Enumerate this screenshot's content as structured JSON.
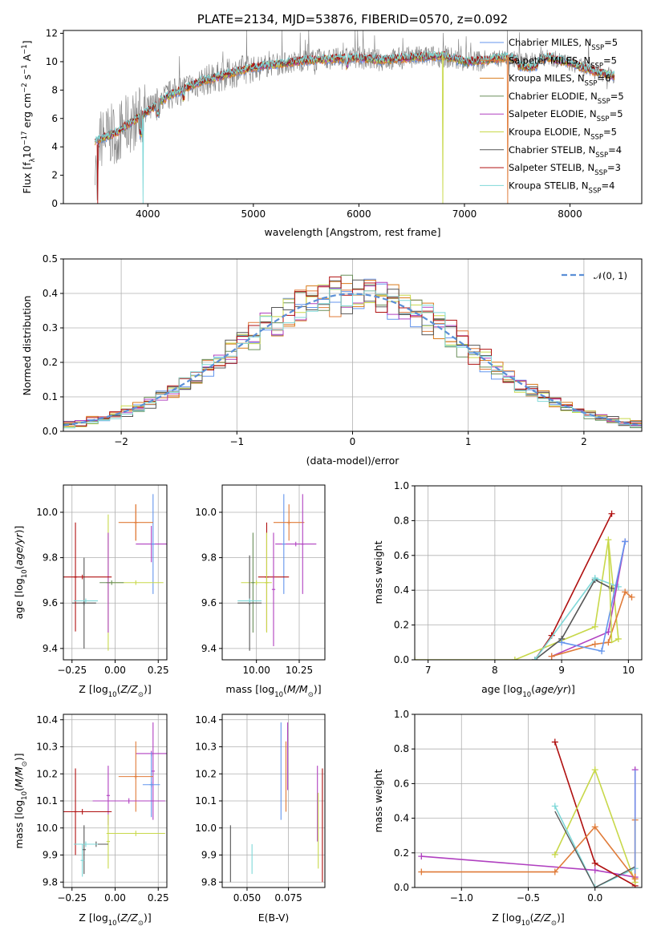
{
  "colors": {
    "chabrier_miles": "#6495ed",
    "salpeter_miles": "#e07b39",
    "kroupa_miles": "#d97a1a",
    "chabrier_elodie": "#6a8f5a",
    "salpeter_elodie": "#b040c0",
    "kroupa_elodie": "#c8d84a",
    "chabrier_stelib": "#555555",
    "salpeter_stelib": "#b01010",
    "kroupa_stelib": "#7fd8d8",
    "data": "#808080",
    "gauss": "#5b8fd6",
    "grid": "#b0b0b0"
  },
  "spectrum": {
    "title": "PLATE=2134, MJD=53876, FIBERID=0570, z=0.092",
    "xlabel": "wavelength [Angstrom, rest frame]",
    "ylabel": "Flux [f",
    "ylabel_parts": [
      "Flux [f",
      "λ",
      "10",
      "−17",
      " erg cm",
      "−2",
      " s",
      "−1",
      " A",
      "−1",
      "]"
    ],
    "xticks": [
      "4000",
      "5000",
      "6000",
      "7000",
      "8000"
    ],
    "yticks": [
      "0",
      "2",
      "4",
      "6",
      "8",
      "10",
      "12"
    ],
    "legend": [
      {
        "text": "Chabrier MILES, N",
        "sub": "SSP",
        "tail": "=5"
      },
      {
        "text": "Salpeter MILES, N",
        "sub": "SSP",
        "tail": "=5"
      },
      {
        "text": "Kroupa MILES, N",
        "sub": "SSP",
        "tail": "=6"
      },
      {
        "text": "Chabrier ELODIE, N",
        "sub": "SSP",
        "tail": "=5"
      },
      {
        "text": "Salpeter ELODIE, N",
        "sub": "SSP",
        "tail": "=5"
      },
      {
        "text": "Kroupa ELODIE, N",
        "sub": "SSP",
        "tail": "=5"
      },
      {
        "text": "Chabrier STELIB, N",
        "sub": "SSP",
        "tail": "=4"
      },
      {
        "text": "Salpeter STELIB, N",
        "sub": "SSP",
        "tail": "=3"
      },
      {
        "text": "Kroupa STELIB, N",
        "sub": "SSP",
        "tail": "=4"
      }
    ]
  },
  "hist": {
    "xlabel": "(data-model)/error",
    "ylabel": "Normed distribution",
    "xticks": [
      "−2",
      "−1",
      "0",
      "1",
      "2"
    ],
    "yticks": [
      "0.0",
      "0.1",
      "0.2",
      "0.3",
      "0.4",
      "0.5"
    ],
    "legend_text": "𝒩(0, 1)"
  },
  "panels": {
    "age_label": "age  [log",
    "z_label": "Z [log",
    "mass_label": "mass [log",
    "ebv_label": "E(B-V)",
    "massweight_label": "mass weight",
    "p_az": {
      "xticks": [
        "−0.25",
        "0.00",
        "0.25"
      ],
      "yticks": [
        "9.4",
        "9.6",
        "9.8",
        "10.0"
      ]
    },
    "p_am": {
      "xticks": [
        "10.00",
        "10.25"
      ],
      "yticks": [
        "9.4",
        "9.6",
        "9.8",
        "10.0"
      ]
    },
    "p_wa": {
      "xticks": [
        "7",
        "8",
        "9",
        "10"
      ],
      "yticks": [
        "0.0",
        "0.2",
        "0.4",
        "0.6",
        "0.8",
        "1.0"
      ]
    },
    "p_mz": {
      "xticks": [
        "−0.25",
        "0.00",
        "0.25"
      ],
      "yticks": [
        "9.8",
        "9.9",
        "10.0",
        "10.1",
        "10.2",
        "10.3",
        "10.4"
      ]
    },
    "p_me": {
      "xticks": [
        "0.050",
        "0.075"
      ],
      "yticks": [
        "9.8",
        "9.9",
        "10.0",
        "10.1",
        "10.2",
        "10.3",
        "10.4"
      ]
    },
    "p_wz": {
      "xticks": [
        "−1.0",
        "−0.5",
        "0.0"
      ],
      "yticks": [
        "0.0",
        "0.2",
        "0.4",
        "0.6",
        "0.8",
        "1.0"
      ]
    }
  },
  "chart_data": [
    {
      "type": "line",
      "title": "PLATE=2134, MJD=53876, FIBERID=0570, z=0.092",
      "xlabel": "wavelength [Angstrom, rest frame]",
      "ylabel": "Flux [fλ10−17 erg cm−2 s−1 A−1]",
      "xlim": [
        3200,
        8680
      ],
      "ylim": [
        0,
        12.2
      ],
      "series": [
        {
          "name": "data",
          "x": [
            3500,
            3700,
            3900,
            4000,
            4200,
            4500,
            4800,
            5000,
            5200,
            5500,
            5800,
            6000,
            6200,
            6500,
            6800,
            7000,
            7200,
            7400,
            7600,
            7800,
            8000,
            8200,
            8400
          ],
          "y": [
            4.4,
            5.0,
            6.0,
            6.5,
            7.6,
            8.6,
            9.2,
            9.6,
            9.8,
            10.1,
            10.2,
            10.3,
            10.1,
            10.3,
            10.4,
            10.0,
            10.1,
            10.3,
            10.0,
            10.3,
            9.9,
            9.4,
            9.0
          ]
        },
        {
          "name": "Chabrier MILES, NSSP=5",
          "x": [
            3500,
            3700,
            3900,
            4000,
            4200,
            4500,
            4800,
            5000,
            5200,
            5500,
            5800,
            6000,
            6200,
            6500,
            6800,
            7000,
            7200,
            7400,
            7600,
            7800,
            8000,
            8200,
            8400
          ],
          "y": [
            4.4,
            5.0,
            6.0,
            6.5,
            7.6,
            8.6,
            9.2,
            9.6,
            9.8,
            10.1,
            10.2,
            10.3,
            10.1,
            10.3,
            10.4,
            10.0,
            10.1,
            10.3,
            10.0,
            10.3,
            9.9,
            9.4,
            9.0
          ]
        }
      ]
    },
    {
      "type": "line",
      "xlabel": "(data-model)/error",
      "ylabel": "Normed distribution",
      "xlim": [
        -2.5,
        2.5
      ],
      "ylim": [
        0,
        0.5
      ],
      "series": [
        {
          "name": "𝒩(0, 1)",
          "x": [
            -2.5,
            -2.0,
            -1.5,
            -1.0,
            -0.5,
            0,
            0.5,
            1.0,
            1.5,
            2.0,
            2.5
          ],
          "y": [
            0.018,
            0.054,
            0.13,
            0.242,
            0.352,
            0.399,
            0.352,
            0.242,
            0.13,
            0.054,
            0.018
          ]
        }
      ]
    },
    {
      "type": "scatter",
      "xlabel": "Z [log10(Z/Z⊙)]",
      "ylabel": "age [log10(age/yr)]",
      "xlim": [
        -0.3,
        0.3
      ],
      "ylim": [
        9.35,
        10.12
      ],
      "series": [
        {
          "name": "Chabrier MILES",
          "x": [
            0.21
          ],
          "y": [
            9.86
          ]
        },
        {
          "name": "Salpeter MILES",
          "x": [
            0.12
          ],
          "y": [
            9.96
          ]
        },
        {
          "name": "Chabrier ELODIE",
          "x": [
            -0.04
          ],
          "y": [
            9.69
          ]
        },
        {
          "name": "Salpeter ELODIE",
          "x": [
            0.12
          ],
          "y": [
            9.86
          ]
        },
        {
          "name": "Kroupa ELODIE",
          "x": [
            0.12
          ],
          "y": [
            9.69
          ]
        },
        {
          "name": "Chabrier STELIB",
          "x": [
            -0.18
          ],
          "y": [
            9.6
          ]
        },
        {
          "name": "Salpeter STELIB",
          "x": [
            -0.19
          ],
          "y": [
            9.71
          ]
        },
        {
          "name": "Kroupa STELIB",
          "x": [
            -0.18
          ],
          "y": [
            9.61
          ]
        }
      ]
    },
    {
      "type": "line",
      "xlabel": "age [log10(age/yr)]",
      "ylabel": "mass weight",
      "xlim": [
        6.8,
        10.2
      ],
      "ylim": [
        0,
        1.0
      ],
      "series": [
        {
          "name": "Salpeter STELIB",
          "x": [
            8.6,
            8.85,
            9.75
          ],
          "y": [
            0.0,
            0.14,
            0.84
          ]
        },
        {
          "name": "Kroupa ELODIE",
          "x": [
            6.8,
            8.3,
            9.5,
            9.7,
            9.85
          ],
          "y": [
            0.0,
            0.0,
            0.19,
            0.69,
            0.12
          ]
        },
        {
          "name": "Chabrier STELIB",
          "x": [
            8.6,
            9.0,
            9.5,
            9.75
          ],
          "y": [
            0.0,
            0.12,
            0.46,
            0.41
          ]
        },
        {
          "name": "Kroupa STELIB",
          "x": [
            8.6,
            9.5,
            9.85
          ],
          "y": [
            0.0,
            0.47,
            0.42
          ]
        },
        {
          "name": "Salpeter ELODIE",
          "x": [
            8.85,
            9.7,
            9.95
          ],
          "y": [
            0.02,
            0.16,
            0.68
          ]
        },
        {
          "name": "Salpeter MILES",
          "x": [
            8.85,
            9.5,
            9.7,
            9.95,
            10.05
          ],
          "y": [
            0.02,
            0.09,
            0.1,
            0.39,
            0.36
          ]
        },
        {
          "name": "Chabrier MILES",
          "x": [
            9.0,
            9.6,
            9.95
          ],
          "y": [
            0.1,
            0.05,
            0.68
          ]
        }
      ]
    },
    {
      "type": "scatter",
      "xlabel": "Z [log10(Z/Z⊙)]",
      "ylabel": "mass [log10(M/M⊙)]",
      "xlim": [
        -0.3,
        0.3
      ],
      "ylim": [
        9.78,
        10.42
      ],
      "series": [
        {
          "name": "Chabrier MILES",
          "x": [
            0.21
          ],
          "y": [
            10.16
          ]
        },
        {
          "name": "Salpeter MILES",
          "x": [
            0.12
          ],
          "y": [
            10.19
          ]
        },
        {
          "name": "Salpeter ELODIE",
          "x": [
            -0.04
          ],
          "y": [
            10.1
          ]
        },
        {
          "name": "Kroupa ELODIE",
          "x": [
            0.12
          ],
          "y": [
            9.98
          ]
        },
        {
          "name": "Salpeter STELIB",
          "x": [
            -0.19
          ],
          "y": [
            10.06
          ]
        },
        {
          "name": "Kroupa STELIB",
          "x": [
            -0.18
          ],
          "y": [
            9.94
          ]
        }
      ]
    },
    {
      "type": "scatter",
      "xlabel": "E(B-V)",
      "ylabel": "mass [log10(M/M⊙)]",
      "xlim": [
        0.035,
        0.097
      ],
      "ylim": [
        9.78,
        10.42
      ],
      "series": [
        {
          "name": "Chabrier MILES",
          "x": [
            0.07
          ],
          "y": [
            10.21
          ]
        },
        {
          "name": "Salpeter MILES",
          "x": [
            0.074
          ],
          "y": [
            10.19
          ]
        },
        {
          "name": "Salpeter STELIB",
          "x": [
            0.095
          ],
          "y": [
            10.06
          ]
        },
        {
          "name": "Chabrier STELIB",
          "x": [
            0.04
          ],
          "y": [
            9.9
          ]
        },
        {
          "name": "Kroupa STELIB",
          "x": [
            0.053
          ],
          "y": [
            9.86
          ]
        }
      ]
    },
    {
      "type": "line",
      "xlabel": "Z [log10(Z/Z⊙)]",
      "ylabel": "mass weight",
      "xlim": [
        -1.35,
        0.35
      ],
      "ylim": [
        0,
        1.0
      ],
      "series": [
        {
          "name": "Salpeter STELIB",
          "x": [
            -0.3,
            0.0,
            0.3
          ],
          "y": [
            0.84,
            0.14,
            0.01
          ]
        },
        {
          "name": "Kroupa ELODIE",
          "x": [
            -0.3,
            0.0,
            0.3
          ],
          "y": [
            0.19,
            0.68,
            0.03
          ]
        },
        {
          "name": "Kroupa STELIB",
          "x": [
            -0.3,
            0.0,
            0.3
          ],
          "y": [
            0.47,
            0.0,
            0.11
          ]
        },
        {
          "name": "Salpeter ELODIE",
          "x": [
            -1.3,
            0.0,
            0.3,
            0.3
          ],
          "y": [
            0.18,
            0.1,
            0.06,
            0.68
          ]
        },
        {
          "name": "Salpeter MILES",
          "x": [
            -1.3,
            -0.3,
            0.0,
            0.3,
            0.3
          ],
          "y": [
            0.09,
            0.09,
            0.35,
            0.05,
            0.39
          ]
        }
      ]
    }
  ]
}
